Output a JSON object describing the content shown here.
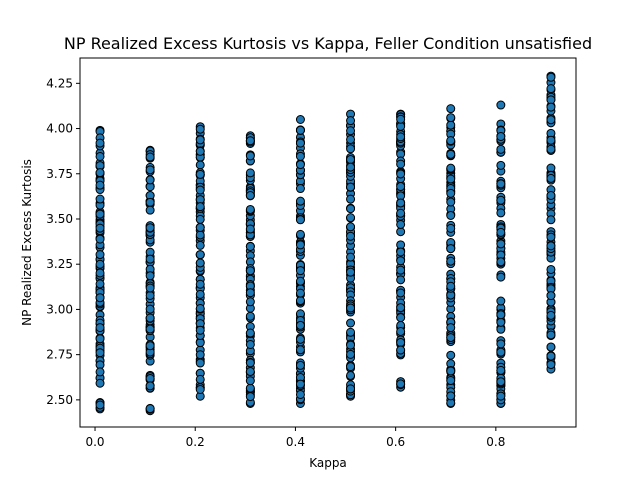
{
  "chart_data": {
    "type": "scatter",
    "title": "NP Realized Excess Kurtosis vs Kappa, Feller Condition unsatisfied",
    "xlabel": "Kappa",
    "ylabel": "NP Realized Excess Kurtosis",
    "xlim": [
      -0.03,
      0.96
    ],
    "ylim": [
      2.35,
      4.39
    ],
    "x_ticks": [
      0.0,
      0.2,
      0.4,
      0.6,
      0.8
    ],
    "x_tick_labels": [
      "0.0",
      "0.2",
      "0.4",
      "0.6",
      "0.8"
    ],
    "y_ticks": [
      2.5,
      2.75,
      3.0,
      3.25,
      3.5,
      3.75,
      4.0,
      4.25
    ],
    "y_tick_labels": [
      "2.50",
      "2.75",
      "3.00",
      "3.25",
      "3.50",
      "3.75",
      "4.00",
      "4.25"
    ],
    "grid": false,
    "marker_color": "#1f77b4",
    "marker_edge_color": "#000000",
    "columns": [
      {
        "x": 0.01,
        "y_min": 2.45,
        "y_max": 3.99
      },
      {
        "x": 0.11,
        "y_min": 2.44,
        "y_max": 3.88
      },
      {
        "x": 0.21,
        "y_min": 2.52,
        "y_max": 4.01
      },
      {
        "x": 0.31,
        "y_min": 2.48,
        "y_max": 3.96
      },
      {
        "x": 0.41,
        "y_min": 2.48,
        "y_max": 4.05
      },
      {
        "x": 0.51,
        "y_min": 2.52,
        "y_max": 4.08
      },
      {
        "x": 0.61,
        "y_min": 2.57,
        "y_max": 4.08
      },
      {
        "x": 0.71,
        "y_min": 2.48,
        "y_max": 4.11
      },
      {
        "x": 0.81,
        "y_min": 2.48,
        "y_max": 4.13
      },
      {
        "x": 0.91,
        "y_min": 2.67,
        "y_max": 4.29
      }
    ]
  }
}
